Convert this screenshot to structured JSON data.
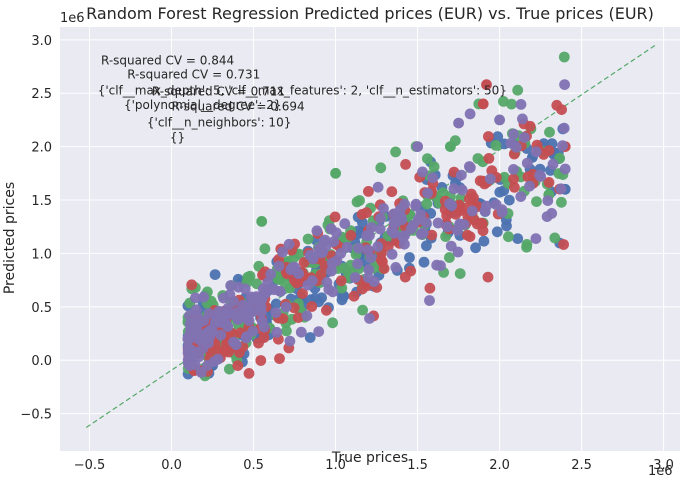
{
  "chart_data": {
    "type": "scatter",
    "title": "Random Forest Regression Predicted prices (EUR) vs. True prices (EUR)",
    "xlabel": "True prices",
    "ylabel": "Predicted prices",
    "x_offset_label": "1e6",
    "y_offset_label": "1e6",
    "xlim": [
      -0.68,
      3.1
    ],
    "ylim": [
      -0.85,
      3.12
    ],
    "xticks": [
      -0.5,
      0.0,
      0.5,
      1.0,
      1.5,
      2.0,
      2.5,
      3.0
    ],
    "xtick_labels": [
      "−0.5",
      "0.0",
      "0.5",
      "1.0",
      "1.5",
      "2.0",
      "2.5",
      "3.0"
    ],
    "yticks": [
      -0.5,
      0.0,
      0.5,
      1.0,
      1.5,
      2.0,
      2.5,
      3.0
    ],
    "ytick_labels": [
      "−0.5",
      "0.0",
      "0.5",
      "1.0",
      "1.5",
      "2.0",
      "2.5",
      "3.0"
    ],
    "grid": true,
    "background_color": "#EAEAF2",
    "reference_line": {
      "x": [
        -0.52,
        2.95
      ],
      "y": [
        -0.63,
        2.95
      ],
      "color": "#55A868",
      "style": "dashed"
    },
    "series": [
      {
        "color": "#4C72B0",
        "seed": 11,
        "bias": 0.0,
        "spread": 0.17,
        "outliers": [
          [
            2.2,
            1.9
          ],
          [
            2.4,
            1.6
          ],
          [
            1.05,
            0.6
          ],
          [
            0.25,
            -0.05
          ]
        ]
      },
      {
        "color": "#55A868",
        "seed": 23,
        "bias": 0.06,
        "spread": 0.2,
        "outliers": [
          [
            1.7,
            2.0
          ],
          [
            2.3,
            1.55
          ],
          [
            1.0,
            1.75
          ],
          [
            0.55,
            1.3
          ]
        ]
      },
      {
        "color": "#C44E52",
        "seed": 37,
        "bias": -0.04,
        "spread": 0.18,
        "outliers": [
          [
            1.92,
            2.58
          ],
          [
            1.9,
            2.4
          ],
          [
            2.4,
            2.0
          ],
          [
            0.18,
            -0.1
          ]
        ]
      },
      {
        "color": "#8172B2",
        "seed": 53,
        "bias": 0.02,
        "spread": 0.16,
        "outliers": [
          [
            1.75,
            2.22
          ],
          [
            1.5,
            2.0
          ],
          [
            2.0,
            2.25
          ],
          [
            0.1,
            0.2
          ]
        ]
      }
    ],
    "annotations": [
      {
        "text": "R-squared CV = 0.844",
        "x": -0.43,
        "y": 2.77
      },
      {
        "text": "R-squared CV = 0.731",
        "x": -0.27,
        "y": 2.64
      },
      {
        "text": "{'clf__max_depth': 5, 'clf__max_features': 2, 'clf__n_estimators': 50}",
        "x": -0.45,
        "y": 2.49
      },
      {
        "text": "R-squared CV = 0.711",
        "x": -0.12,
        "y": 2.48
      },
      {
        "text": "{'polynomial__degree': 2}",
        "x": -0.29,
        "y": 2.35
      },
      {
        "text": "R-squared CV = 0.694",
        "x": 0.0,
        "y": 2.34
      },
      {
        "text": "{'clf__n_neighbors': 10}",
        "x": -0.15,
        "y": 2.19
      },
      {
        "text": "{}",
        "x": -0.01,
        "y": 2.05
      }
    ]
  }
}
